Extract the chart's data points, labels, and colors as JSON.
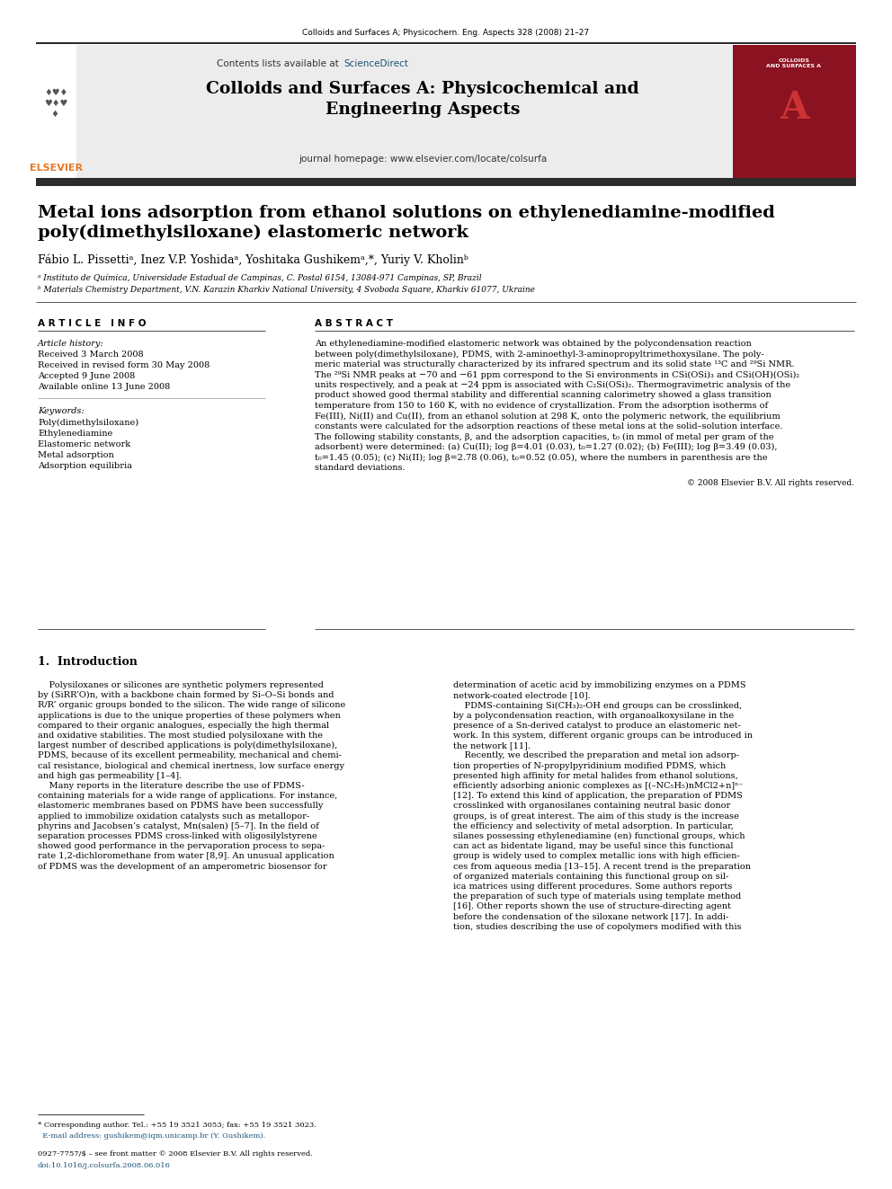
{
  "journal_citation": "Colloids and Surfaces A; Physicochern. Eng. Aspects 328 (2008) 21–27",
  "header_text1": "Contents lists available at ",
  "header_sciencedirect": "ScienceDirect",
  "header_sciencedirect_color": "#1a5276",
  "journal_title_line1": "Colloids and Surfaces A: Physicochemical and",
  "journal_title_line2": "Engineering Aspects",
  "journal_homepage": "journal homepage: www.elsevier.com/locate/colsurfa",
  "paper_title_line1": "Metal ions adsorption from ethanol solutions on ethylenediamine-modified",
  "paper_title_line2": "poly(dimethylsiloxane) elastomeric network",
  "authors_line": "Fábio L. Pissettiᵃ, Inez V.P. Yoshidaᵃ, Yoshitaka Gushikemᵃ,*, Yuriy V. Kholinᵇ",
  "affil_a": "ᵃ Instituto de Química, Universidade Estadual de Campinas, C. Postal 6154, 13084-971 Campinas, SP, Brazil",
  "affil_b": "ᵇ Materials Chemistry Department, V.N. Karazin Kharkiv National University, 4 Svoboda Square, Kharkiv 61077, Ukraine",
  "article_info_title": "A R T I C L E   I N F O",
  "abstract_title": "A B S T R A C T",
  "article_history_label": "Article history:",
  "article_history_lines": [
    "Received 3 March 2008",
    "Received in revised form 30 May 2008",
    "Accepted 9 June 2008",
    "Available online 13 June 2008"
  ],
  "keywords_label": "Keywords:",
  "keywords_lines": [
    "Poly(dimethylsiloxane)",
    "Ethylenediamine",
    "Elastomeric network",
    "Metal adsorption",
    "Adsorption equilibria"
  ],
  "abstract_wrapped": [
    "An ethylenediamine-modified elastomeric network was obtained by the polycondensation reaction",
    "between poly(dimethylsiloxane), PDMS, with 2-aminoethyl-3-aminopropyltrimethoxysilane. The poly-",
    "meric material was structurally characterized by its infrared spectrum and its solid state ¹³C and ²⁹Si NMR.",
    "The ²⁹Si NMR peaks at −70 and −61 ppm correspond to the Si environments in CSi(OSi)₃ and CSi(OH)(OSi)₂",
    "units respectively, and a peak at −24 ppm is associated with C₂Si(OSi)₂. Thermogravimetric analysis of the",
    "product showed good thermal stability and differential scanning calorimetry showed a glass transition",
    "temperature from 150 to 160 K, with no evidence of crystallization. From the adsorption isotherms of",
    "Fe(III), Ni(II) and Cu(II), from an ethanol solution at 298 K, onto the polymeric network, the equilibrium",
    "constants were calculated for the adsorption reactions of these metal ions at the solid–solution interface.",
    "The following stability constants, β, and the adsorption capacities, t₀ (in mmol of metal per gram of the",
    "adsorbent) were determined: (a) Cu(II); log β=4.01 (0.03), t₀=1.27 (0.02); (b) Fe(III); log β=3.49 (0.03),",
    "t₀=1.45 (0.05); (c) Ni(II); log β=2.78 (0.06), t₀=0.52 (0.05), where the numbers in parenthesis are the",
    "standard deviations."
  ],
  "copyright": "© 2008 Elsevier B.V. All rights reserved.",
  "intro_title": "1.  Introduction",
  "intro_left_lines": [
    "    Polysiloxanes or silicones are synthetic polymers represented",
    "by (SiRR’O)n, with a backbone chain formed by Si–O–Si bonds and",
    "R/R’ organic groups bonded to the silicon. The wide range of silicone",
    "applications is due to the unique properties of these polymers when",
    "compared to their organic analogues, especially the high thermal",
    "and oxidative stabilities. The most studied polysiloxane with the",
    "largest number of described applications is poly(dimethylsiloxane),",
    "PDMS, because of its excellent permeability, mechanical and chemi-",
    "cal resistance, biological and chemical inertness, low surface energy",
    "and high gas permeability [1–4].",
    "    Many reports in the literature describe the use of PDMS-",
    "containing materials for a wide range of applications. For instance,",
    "elastomeric membranes based on PDMS have been successfully",
    "applied to immobilize oxidation catalysts such as metallopor-",
    "phyrins and Jacobsen’s catalyst, Mn(salen) [5–7]. In the field of",
    "separation processes PDMS cross-linked with oligosilylstyrene",
    "showed good performance in the pervaporation process to sepa-",
    "rate 1,2-dichloromethane from water [8,9]. An unusual application",
    "of PDMS was the development of an amperometric biosensor for"
  ],
  "intro_right_lines": [
    "determination of acetic acid by immobilizing enzymes on a PDMS",
    "network-coated electrode [10].",
    "    PDMS-containing Si(CH₃)₂-OH end groups can be crosslinked,",
    "by a polycondensation reaction, with organoalkoxysilane in the",
    "presence of a Sn-derived catalyst to produce an elastomeric net-",
    "work. In this system, different organic groups can be introduced in",
    "the network [11].",
    "    Recently, we described the preparation and metal ion adsorp-",
    "tion properties of N-propylpyridinium modified PDMS, which",
    "presented high affinity for metal halides from ethanol solutions,",
    "efficiently adsorbing anionic complexes as [(–NC₅H₅)nMCl2+n]ⁿ⁻",
    "[12]. To extend this kind of application, the preparation of PDMS",
    "crosslinked with organosilanes containing neutral basic donor",
    "groups, is of great interest. The aim of this study is the increase",
    "the efficiency and selectivity of metal adsorption. In particular,",
    "silanes possessing ethylenediamine (en) functional groups, which",
    "can act as bidentate ligand, may be useful since this functional",
    "group is widely used to complex metallic ions with high efficien-",
    "ces from aqueous media [13–15]. A recent trend is the preparation",
    "of organized materials containing this functional group on sil-",
    "ica matrices using different procedures. Some authors reports",
    "the preparation of such type of materials using template method",
    "[16]. Other reports shown the use of structure-directing agent",
    "before the condensation of the siloxane network [17]. In addi-",
    "tion, studies describing the use of copolymers modified with this"
  ],
  "footnote_star": "* Corresponding author. Tel.: +55 19 3521 3053; fax: +55 19 3521 3023.",
  "footnote_email": "  E-mail address: gushikem@iqm.unicamp.br (Y. Gushikem).",
  "bottom_line1": "0927-7757/$ – see front matter © 2008 Elsevier B.V. All rights reserved.",
  "bottom_line2": "doi:10.1016/j.colsurfa.2008.06.016",
  "elsevier_color": "#e87722",
  "dark_bar_color": "#2c2c2c"
}
